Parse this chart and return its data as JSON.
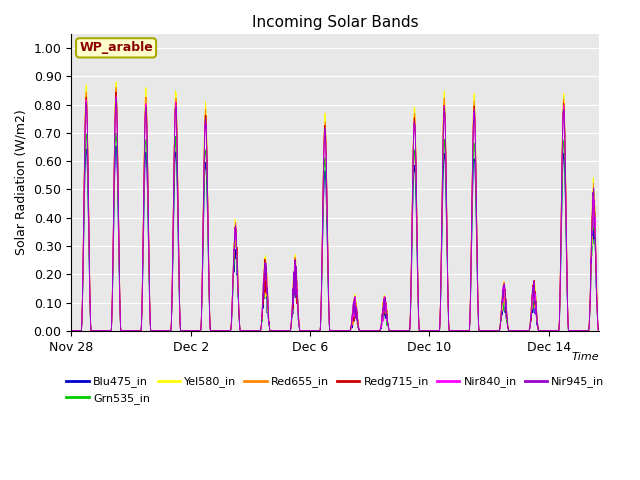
{
  "title": "Incoming Solar Bands",
  "ylabel": "Solar Radiation (W/m2)",
  "xlabel": "Time",
  "annotation": "WP_arable",
  "ylim": [
    0,
    1.05
  ],
  "yticks": [
    0.0,
    0.1,
    0.2,
    0.3,
    0.4,
    0.5,
    0.6,
    0.7,
    0.8,
    0.9,
    1.0
  ],
  "series": [
    {
      "name": "Blu475_in",
      "color": "#0000cc"
    },
    {
      "name": "Grn535_in",
      "color": "#00cc00"
    },
    {
      "name": "Yel580_in",
      "color": "#ffff00"
    },
    {
      "name": "Red655_in",
      "color": "#ff8800"
    },
    {
      "name": "Redg715_in",
      "color": "#cc0000"
    },
    {
      "name": "Nir840_in",
      "color": "#ff00ff"
    },
    {
      "name": "Nir945_in",
      "color": "#9900cc"
    }
  ],
  "bg_color": "#e8e8e8",
  "grid_color": "#ffffff",
  "xtick_labels": [
    "Nov 28",
    "Dec 2",
    "Dec 6",
    "Dec 10",
    "Dec 14"
  ],
  "xtick_pos": [
    0,
    4,
    8,
    12,
    16
  ],
  "annotation_bg": "#ffffcc",
  "annotation_text_color": "#8b0000",
  "annotation_border_color": "#aaaa00",
  "figsize": [
    6.4,
    4.8
  ],
  "dpi": 100,
  "n_days": 18,
  "day_peaks": [
    0.87,
    0.89,
    0.86,
    0.86,
    0.81,
    0.4,
    0.27,
    0.27,
    0.77,
    0.13,
    0.13,
    0.8,
    0.85,
    0.84,
    0.18,
    0.19,
    0.85,
    0.55
  ],
  "day_cloud": [
    0.0,
    0.05,
    0.05,
    0.05,
    0.05,
    0.25,
    0.6,
    0.6,
    0.05,
    0.8,
    0.8,
    0.05,
    0.05,
    0.05,
    0.6,
    0.6,
    0.05,
    0.3
  ],
  "band_scales": {
    "Blu475_in": 0.74,
    "Grn535_in": 0.8,
    "Yel580_in": 1.0,
    "Red655_in": 0.97,
    "Redg715_in": 0.95,
    "Nir840_in": 0.94,
    "Nir945_in": 0.93
  }
}
